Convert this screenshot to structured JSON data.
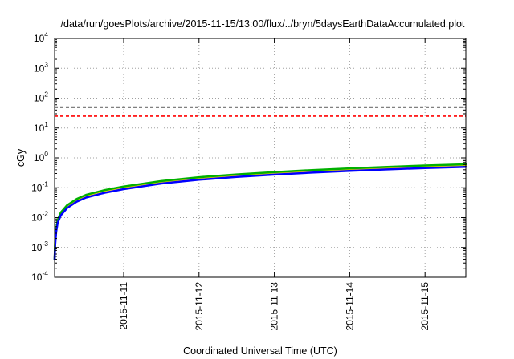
{
  "chart_data": {
    "type": "line",
    "title": "/data/run/goesPlots/archive/2015-11-15/13:00/flux/../bryn/5daysEarthDataAccumulated.plot",
    "xlabel": "Coordinated Universal Time (UTC)",
    "ylabel": "cGy",
    "yscale": "log",
    "ylim": [
      0.0001,
      10000
    ],
    "xlim": [
      "2015-11-10 02:00",
      "2015-11-15 13:00"
    ],
    "yticks": [
      {
        "base": "10",
        "exp": "-4"
      },
      {
        "base": "10",
        "exp": "-3"
      },
      {
        "base": "10",
        "exp": "-2"
      },
      {
        "base": "10",
        "exp": "-1"
      },
      {
        "base": "10",
        "exp": "0"
      },
      {
        "base": "10",
        "exp": "1"
      },
      {
        "base": "10",
        "exp": "2"
      },
      {
        "base": "10",
        "exp": "3"
      },
      {
        "base": "10",
        "exp": "4"
      }
    ],
    "xticks": [
      "2015-11-11",
      "2015-11-12",
      "2015-11-13",
      "2015-11-14",
      "2015-11-15"
    ],
    "grid": true,
    "reference_lines": [
      {
        "value": 50,
        "color": "#000000",
        "style": "dashed"
      },
      {
        "value": 25,
        "color": "#ff0000",
        "style": "dashed"
      }
    ],
    "series": [
      {
        "color": "#ffcc00",
        "x": [
          "2015-11-10 02:00",
          "2015-11-10 02:10",
          "2015-11-10 02:30",
          "2015-11-10 03:00",
          "2015-11-10 04:00",
          "2015-11-10 06:00",
          "2015-11-10 09:00",
          "2015-11-10 12:00",
          "2015-11-10 18:00",
          "2015-11-11 00:00",
          "2015-11-11 12:00",
          "2015-11-12 00:00",
          "2015-11-12 12:00",
          "2015-11-13 00:00",
          "2015-11-13 12:00",
          "2015-11-14 00:00",
          "2015-11-14 12:00",
          "2015-11-15 00:00",
          "2015-11-15 13:00"
        ],
        "y": [
          0.0004,
          0.0015,
          0.004,
          0.008,
          0.014,
          0.025,
          0.04,
          0.055,
          0.08,
          0.105,
          0.16,
          0.215,
          0.265,
          0.32,
          0.37,
          0.42,
          0.47,
          0.525,
          0.58
        ]
      },
      {
        "color": "#00b000",
        "x": [
          "2015-11-10 02:00",
          "2015-11-10 02:10",
          "2015-11-10 02:30",
          "2015-11-10 03:00",
          "2015-11-10 04:00",
          "2015-11-10 06:00",
          "2015-11-10 09:00",
          "2015-11-10 12:00",
          "2015-11-10 18:00",
          "2015-11-11 00:00",
          "2015-11-11 12:00",
          "2015-11-12 00:00",
          "2015-11-12 12:00",
          "2015-11-13 00:00",
          "2015-11-13 12:00",
          "2015-11-14 00:00",
          "2015-11-14 12:00",
          "2015-11-15 00:00",
          "2015-11-15 13:00"
        ],
        "y": [
          0.0004,
          0.0016,
          0.0042,
          0.0085,
          0.015,
          0.026,
          0.042,
          0.058,
          0.084,
          0.11,
          0.168,
          0.225,
          0.28,
          0.335,
          0.39,
          0.445,
          0.5,
          0.555,
          0.61
        ]
      },
      {
        "color": "#0000ff",
        "x": [
          "2015-11-10 02:00",
          "2015-11-10 02:10",
          "2015-11-10 02:30",
          "2015-11-10 03:00",
          "2015-11-10 04:00",
          "2015-11-10 06:00",
          "2015-11-10 09:00",
          "2015-11-10 12:00",
          "2015-11-10 18:00",
          "2015-11-11 00:00",
          "2015-11-11 12:00",
          "2015-11-12 00:00",
          "2015-11-12 12:00",
          "2015-11-13 00:00",
          "2015-11-13 12:00",
          "2015-11-14 00:00",
          "2015-11-14 12:00",
          "2015-11-15 00:00",
          "2015-11-15 13:00"
        ],
        "y": [
          0.0004,
          0.0012,
          0.0034,
          0.0068,
          0.012,
          0.021,
          0.034,
          0.047,
          0.068,
          0.09,
          0.138,
          0.185,
          0.23,
          0.275,
          0.32,
          0.365,
          0.41,
          0.455,
          0.5
        ]
      }
    ]
  }
}
